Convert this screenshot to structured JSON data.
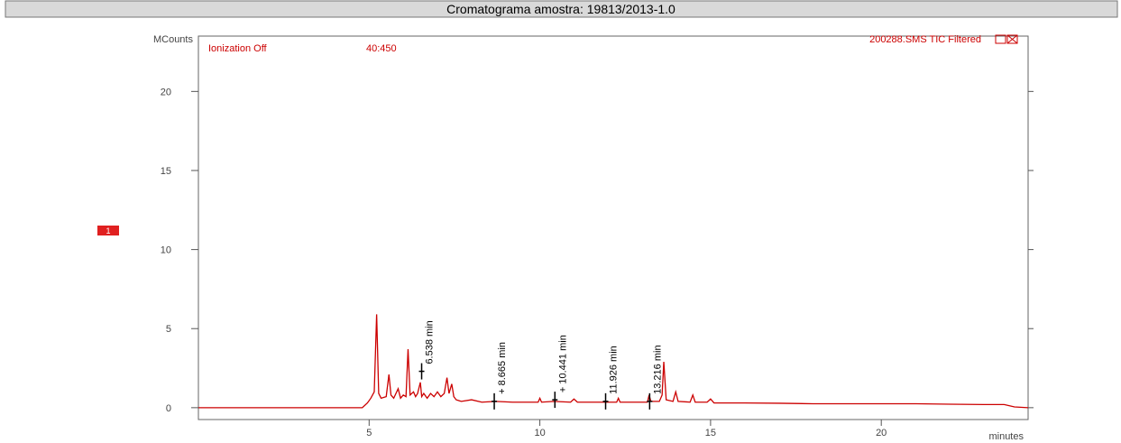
{
  "chart_data": {
    "type": "line",
    "title": "Cromatograma amostra: 19813/2013-1.0",
    "y_label": "MCounts",
    "x_label": "minutes",
    "info_left": "Ionization Off",
    "info_range": "40:450",
    "info_right": "200288.SMS TIC Filtered",
    "trace_marker": "1",
    "xlim": [
      0,
      24.3
    ],
    "ylim": [
      -0.75,
      23.5
    ],
    "xticks": [
      5,
      10,
      15,
      20
    ],
    "yticks": [
      0,
      5,
      10,
      15,
      20
    ],
    "series": [
      {
        "color": "#cc0000",
        "x": [
          0,
          4.8,
          4.95,
          5.05,
          5.15,
          5.22,
          5.28,
          5.35,
          5.5,
          5.58,
          5.64,
          5.72,
          5.85,
          5.92,
          6.0,
          6.08,
          6.14,
          6.2,
          6.3,
          6.36,
          6.42,
          6.5,
          6.54,
          6.6,
          6.7,
          6.8,
          6.9,
          7.0,
          7.1,
          7.2,
          7.28,
          7.34,
          7.42,
          7.48,
          7.55,
          7.7,
          8.0,
          8.3,
          8.7,
          9.2,
          9.6,
          9.95,
          10.0,
          10.05,
          10.4,
          10.9,
          11.0,
          11.1,
          11.5,
          12.0,
          12.25,
          12.3,
          12.35,
          12.8,
          13.15,
          13.2,
          13.25,
          13.5,
          13.58,
          13.63,
          13.7,
          13.9,
          13.98,
          14.05,
          14.4,
          14.48,
          14.55,
          14.9,
          15.0,
          15.1,
          16,
          17,
          18,
          19,
          20,
          21,
          22,
          23,
          23.6,
          23.9,
          24.3
        ],
        "values": [
          0,
          0,
          0.3,
          0.6,
          1.0,
          5.9,
          0.9,
          0.6,
          0.7,
          2.1,
          0.8,
          0.6,
          1.2,
          0.6,
          0.8,
          0.7,
          3.7,
          0.8,
          1.0,
          0.7,
          0.9,
          1.6,
          0.7,
          0.9,
          0.6,
          0.9,
          0.7,
          1.0,
          0.7,
          0.9,
          1.9,
          0.9,
          1.5,
          0.7,
          0.5,
          0.4,
          0.5,
          0.35,
          0.4,
          0.35,
          0.35,
          0.35,
          0.6,
          0.35,
          0.4,
          0.35,
          0.55,
          0.35,
          0.35,
          0.35,
          0.35,
          0.6,
          0.35,
          0.35,
          0.35,
          0.8,
          0.4,
          0.4,
          0.8,
          2.9,
          0.5,
          0.4,
          1.0,
          0.4,
          0.35,
          0.8,
          0.35,
          0.35,
          0.55,
          0.3,
          0.3,
          0.28,
          0.25,
          0.25,
          0.25,
          0.25,
          0.22,
          0.2,
          0.2,
          0.05,
          0.0
        ]
      }
    ],
    "annotations": [
      {
        "text": "6.538 min",
        "x": 6.538,
        "y": 2.3
      },
      {
        "text": "+ 8.665 min",
        "x": 8.665,
        "y": 0.4
      },
      {
        "text": "+ 10.441 min",
        "x": 10.441,
        "y": 0.5
      },
      {
        "text": "11.926 min",
        "x": 11.926,
        "y": 0.4
      },
      {
        "text": "13.216 min",
        "x": 13.216,
        "y": 0.4
      }
    ]
  }
}
